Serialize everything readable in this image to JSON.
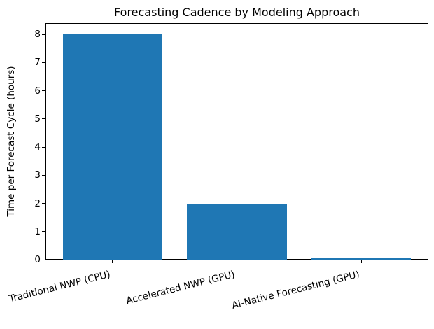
{
  "figure": {
    "background": "#ffffff"
  },
  "chart_data": {
    "type": "bar",
    "title": "Forecasting Cadence by Modeling Approach",
    "xlabel": "",
    "ylabel": "Time per Forecast Cycle (hours)",
    "categories": [
      "Traditional NWP (CPU)",
      "Accelerated NWP (GPU)",
      "AI-Native Forecasting (GPU)"
    ],
    "values": [
      8,
      2,
      0.05
    ],
    "yticks": [
      0,
      1,
      2,
      3,
      4,
      5,
      6,
      7,
      8
    ],
    "ylim": [
      0,
      8.4
    ],
    "bar_color": "#1f77b4",
    "axis_color": "#000000",
    "text_color": "#000000",
    "grid": false,
    "legend": false,
    "x_tick_rotation_deg": 14
  }
}
